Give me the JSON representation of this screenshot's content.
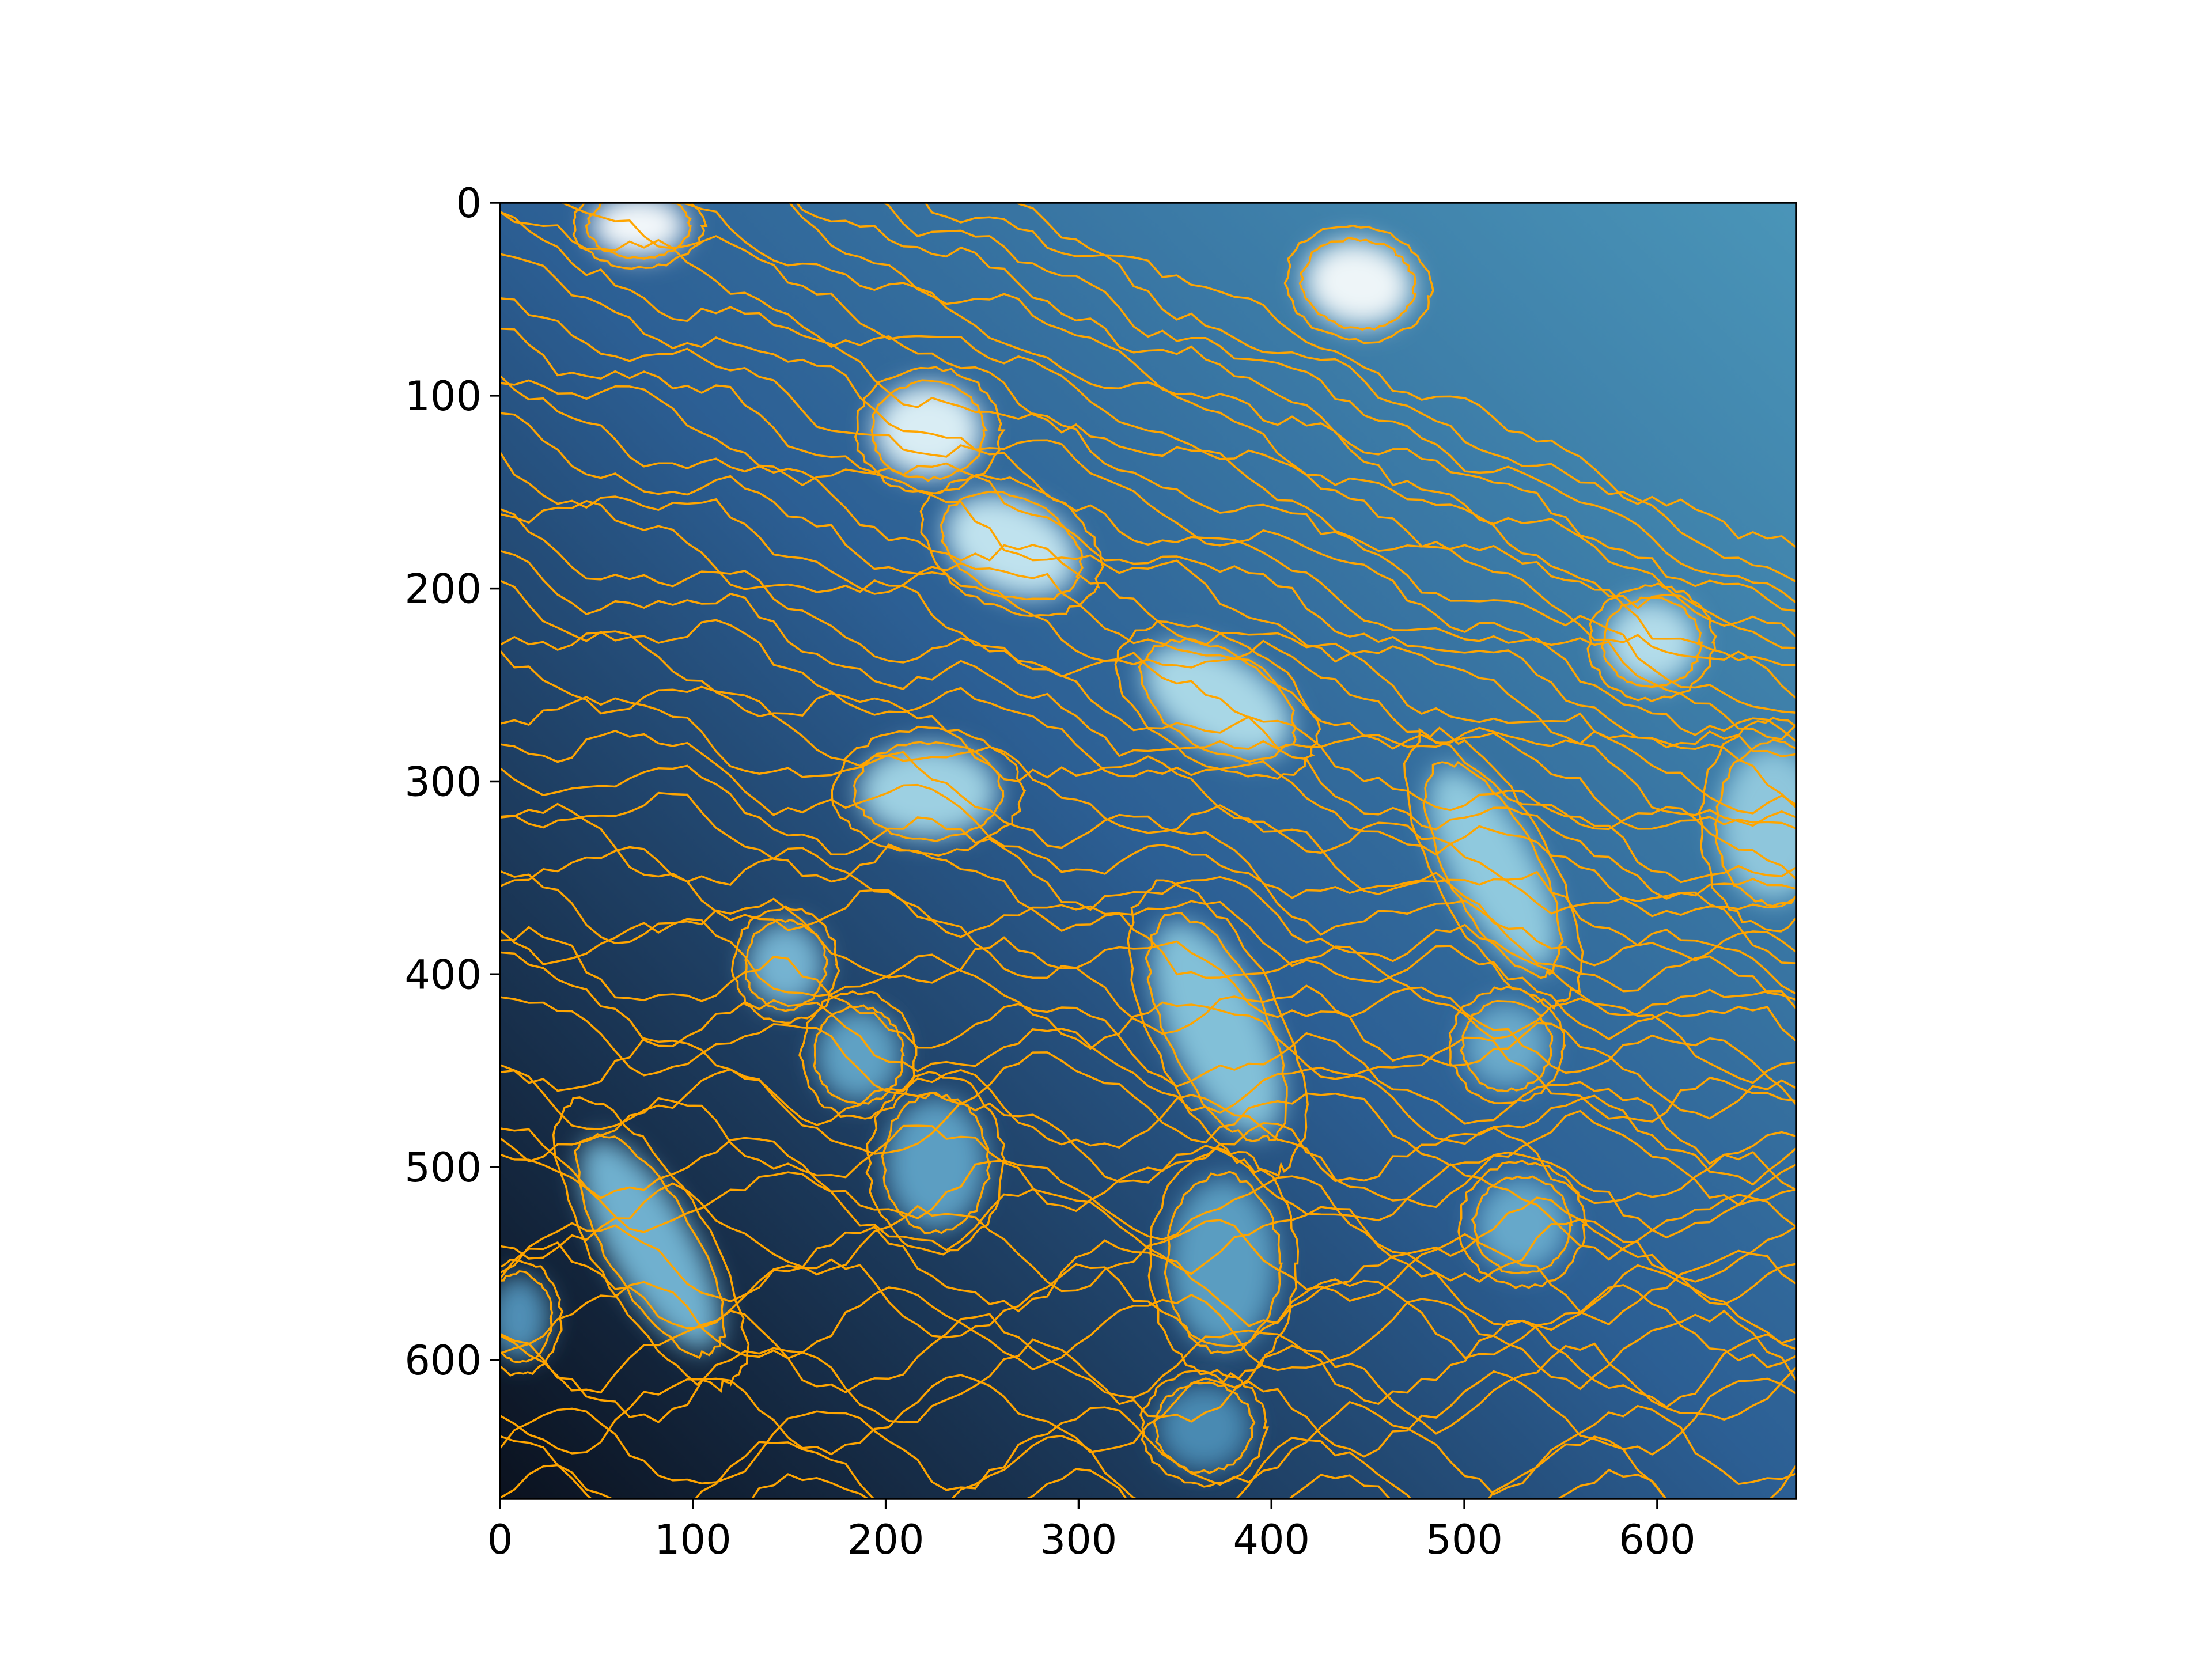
{
  "chart_data": {
    "type": "heatmap",
    "title": "",
    "xlabel": "",
    "ylabel": "",
    "xlim": [
      0,
      672
    ],
    "ylim": [
      672,
      0
    ],
    "x_ticks": [
      0,
      100,
      200,
      300,
      400,
      500,
      600
    ],
    "y_ticks": [
      0,
      100,
      200,
      300,
      400,
      500,
      600
    ],
    "x_tick_labels": [
      "0",
      "100",
      "200",
      "300",
      "400",
      "500",
      "600"
    ],
    "y_tick_labels": [
      "0",
      "100",
      "200",
      "300",
      "400",
      "500",
      "600"
    ],
    "colormap": "dark-navy-to-light-blue",
    "contour_color": "#ffa500",
    "grid": false,
    "background_gradient": {
      "top_right_color": "#4a95b8",
      "middle_color": "#2c5f94",
      "bottom_left_color": "#0b121f"
    },
    "bright_features": [
      {
        "name": "blob-1",
        "x": 72,
        "y": 12,
        "rx": 25,
        "ry": 16,
        "angle": 0,
        "color": "#f2f7fa"
      },
      {
        "name": "blob-2",
        "x": 445,
        "y": 42,
        "rx": 28,
        "ry": 22,
        "angle": 10,
        "color": "#eef5f8"
      },
      {
        "name": "blob-3",
        "x": 222,
        "y": 118,
        "rx": 28,
        "ry": 24,
        "angle": 0,
        "color": "#d9edf4"
      },
      {
        "name": "blob-4",
        "x": 265,
        "y": 178,
        "rx": 36,
        "ry": 24,
        "angle": 25,
        "color": "#bfe2ee"
      },
      {
        "name": "blob-5",
        "x": 372,
        "y": 258,
        "rx": 42,
        "ry": 24,
        "angle": 30,
        "color": "#a8d7e6"
      },
      {
        "name": "blob-6",
        "x": 597,
        "y": 228,
        "rx": 24,
        "ry": 22,
        "angle": 0,
        "color": "#b2dcea"
      },
      {
        "name": "blob-7",
        "x": 222,
        "y": 305,
        "rx": 36,
        "ry": 24,
        "angle": 0,
        "color": "#9dd0e2"
      },
      {
        "name": "blob-8",
        "x": 515,
        "y": 345,
        "rx": 58,
        "ry": 22,
        "angle": 62,
        "color": "#8fc9de"
      },
      {
        "name": "blob-9",
        "x": 660,
        "y": 322,
        "rx": 28,
        "ry": 40,
        "angle": 0,
        "color": "#8ec6dc"
      },
      {
        "name": "blob-10",
        "x": 148,
        "y": 395,
        "rx": 20,
        "ry": 22,
        "angle": 0,
        "color": "#74b3d1"
      },
      {
        "name": "blob-11",
        "x": 372,
        "y": 428,
        "rx": 60,
        "ry": 25,
        "angle": 65,
        "color": "#82c0d8"
      },
      {
        "name": "blob-12",
        "x": 186,
        "y": 442,
        "rx": 22,
        "ry": 24,
        "angle": 0,
        "color": "#5fa1c4"
      },
      {
        "name": "blob-13",
        "x": 522,
        "y": 437,
        "rx": 22,
        "ry": 22,
        "angle": 0,
        "color": "#6aaacb"
      },
      {
        "name": "blob-14",
        "x": 226,
        "y": 498,
        "rx": 26,
        "ry": 34,
        "angle": 0,
        "color": "#5c9ec2"
      },
      {
        "name": "blob-15",
        "x": 78,
        "y": 540,
        "rx": 62,
        "ry": 22,
        "angle": 60,
        "color": "#6fb0cf"
      },
      {
        "name": "blob-16",
        "x": 530,
        "y": 530,
        "rx": 24,
        "ry": 24,
        "angle": 0,
        "color": "#66a8ca"
      },
      {
        "name": "blob-17",
        "x": 375,
        "y": 550,
        "rx": 28,
        "ry": 44,
        "angle": 0,
        "color": "#5a9dc1"
      },
      {
        "name": "blob-18",
        "x": 10,
        "y": 578,
        "rx": 16,
        "ry": 22,
        "angle": 0,
        "color": "#4f8fb6"
      },
      {
        "name": "blob-19",
        "x": 365,
        "y": 635,
        "rx": 24,
        "ry": 22,
        "angle": 0,
        "color": "#4a8ab2"
      }
    ]
  }
}
